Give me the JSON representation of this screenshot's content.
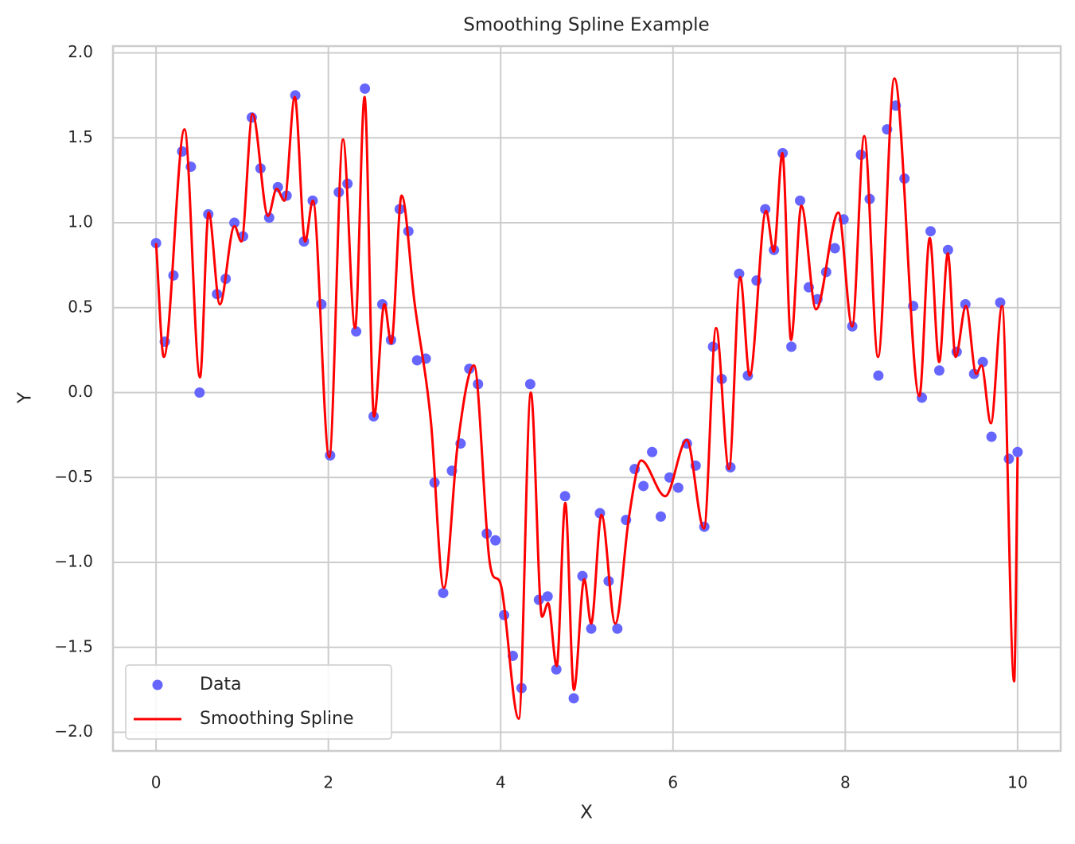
{
  "chart_data": {
    "type": "scatter-line",
    "title": "Smoothing Spline Example",
    "x_label": "X",
    "y_label": "Y",
    "xlim": [
      -0.5,
      10.5
    ],
    "ylim": [
      -2.11,
      2.04
    ],
    "xticks": [
      0,
      2,
      4,
      6,
      8,
      10
    ],
    "yticks": [
      {
        "value": -2.0,
        "label": "−2.0"
      },
      {
        "value": -1.5,
        "label": "−1.5"
      },
      {
        "value": -1.0,
        "label": "−1.0"
      },
      {
        "value": -0.5,
        "label": "−0.5"
      },
      {
        "value": 0.0,
        "label": "0.0"
      },
      {
        "value": 0.5,
        "label": "0.5"
      },
      {
        "value": 1.0,
        "label": "1.0"
      },
      {
        "value": 1.5,
        "label": "1.5"
      },
      {
        "value": 2.0,
        "label": "2.0"
      }
    ],
    "grid": true,
    "legend": "lower left",
    "series": [
      {
        "name": "Data",
        "type": "scatter",
        "color": "#6666ff",
        "x": [
          0,
          0.101,
          0.202,
          0.303,
          0.404,
          0.505,
          0.606,
          0.707,
          0.808,
          0.909,
          1.01,
          1.111,
          1.212,
          1.313,
          1.414,
          1.515,
          1.616,
          1.717,
          1.818,
          1.919,
          2.02,
          2.121,
          2.222,
          2.323,
          2.424,
          2.525,
          2.626,
          2.727,
          2.828,
          2.929,
          3.03,
          3.131,
          3.232,
          3.333,
          3.434,
          3.535,
          3.636,
          3.737,
          3.838,
          3.939,
          4.04,
          4.141,
          4.242,
          4.343,
          4.444,
          4.545,
          4.646,
          4.747,
          4.848,
          4.949,
          5.051,
          5.152,
          5.253,
          5.354,
          5.455,
          5.556,
          5.657,
          5.758,
          5.859,
          5.96,
          6.061,
          6.162,
          6.263,
          6.364,
          6.465,
          6.566,
          6.667,
          6.768,
          6.869,
          6.97,
          7.071,
          7.172,
          7.273,
          7.374,
          7.475,
          7.576,
          7.677,
          7.778,
          7.879,
          7.98,
          8.081,
          8.182,
          8.283,
          8.384,
          8.485,
          8.586,
          8.687,
          8.788,
          8.889,
          8.99,
          9.091,
          9.192,
          9.293,
          9.394,
          9.495,
          9.596,
          9.697,
          9.798,
          9.899,
          10
        ],
        "values": [
          0.88,
          0.3,
          0.69,
          1.42,
          1.33,
          0.0,
          1.05,
          0.58,
          0.67,
          1.0,
          0.92,
          1.62,
          1.32,
          1.03,
          1.21,
          1.16,
          1.75,
          0.89,
          1.13,
          0.52,
          -0.37,
          1.18,
          1.23,
          0.36,
          1.79,
          -0.14,
          0.52,
          0.31,
          1.08,
          0.95,
          0.19,
          0.2,
          -0.53,
          -1.18,
          -0.46,
          -0.3,
          0.14,
          0.05,
          -0.83,
          -0.87,
          -1.31,
          -1.55,
          -1.74,
          0.05,
          -1.22,
          -1.2,
          -1.63,
          -0.61,
          -1.8,
          -1.08,
          -1.39,
          -0.71,
          -1.11,
          -1.39,
          -0.75,
          -0.45,
          -0.55,
          -0.35,
          -0.73,
          -0.5,
          -0.56,
          -0.3,
          -0.43,
          -0.79,
          0.27,
          0.08,
          -0.44,
          0.7,
          0.1,
          0.66,
          1.08,
          0.84,
          1.41,
          0.27,
          1.13,
          0.62,
          0.55,
          0.71,
          0.85,
          1.02,
          0.39,
          1.4,
          1.14,
          0.1,
          1.55,
          1.69,
          1.26,
          0.51,
          -0.03,
          0.95,
          0.13,
          0.84,
          0.24,
          0.52,
          0.11,
          0.18,
          -0.26,
          0.53,
          -0.39,
          -0.35
        ]
      },
      {
        "name": "Smoothing Spline",
        "type": "line",
        "color": "#ff0000",
        "x": [
          0,
          0.09,
          0.33,
          0.51,
          0.61,
          0.74,
          0.91,
          0.99,
          1.12,
          1.3,
          1.4,
          1.49,
          1.61,
          1.73,
          1.82,
          2.01,
          2.17,
          2.31,
          2.42,
          2.53,
          2.65,
          2.73,
          2.85,
          3.0,
          3.19,
          3.34,
          3.5,
          3.69,
          3.87,
          4.01,
          4.21,
          4.35,
          4.48,
          4.55,
          4.65,
          4.75,
          4.85,
          4.97,
          5.05,
          5.17,
          5.33,
          5.49,
          5.63,
          5.91,
          6.16,
          6.36,
          6.5,
          6.65,
          6.78,
          6.89,
          7.08,
          7.17,
          7.27,
          7.37,
          7.49,
          7.66,
          7.92,
          8.08,
          8.22,
          8.38,
          8.57,
          8.86,
          8.98,
          9.09,
          9.19,
          9.28,
          9.4,
          9.52,
          9.58,
          9.69,
          9.82,
          9.96,
          10.0
        ],
        "values": [
          0.88,
          0.21,
          1.55,
          0.09,
          1.06,
          0.52,
          0.98,
          0.89,
          1.64,
          1.04,
          1.2,
          1.13,
          1.74,
          0.89,
          1.13,
          -0.38,
          1.49,
          0.38,
          1.74,
          -0.14,
          0.52,
          0.29,
          1.16,
          0.53,
          -0.17,
          -1.15,
          -0.31,
          0.16,
          -0.99,
          -1.15,
          -1.92,
          0.0,
          -1.32,
          -1.24,
          -1.61,
          -0.65,
          -1.75,
          -1.1,
          -1.36,
          -0.72,
          -1.36,
          -0.73,
          -0.4,
          -0.61,
          -0.28,
          -0.8,
          0.38,
          -0.45,
          0.68,
          0.1,
          1.07,
          0.83,
          1.41,
          0.31,
          1.1,
          0.49,
          1.06,
          0.39,
          1.51,
          0.21,
          1.85,
          -0.02,
          0.91,
          0.18,
          0.82,
          0.21,
          0.51,
          0.11,
          0.16,
          -0.18,
          0.51,
          -1.7,
          -0.38
        ]
      }
    ]
  }
}
